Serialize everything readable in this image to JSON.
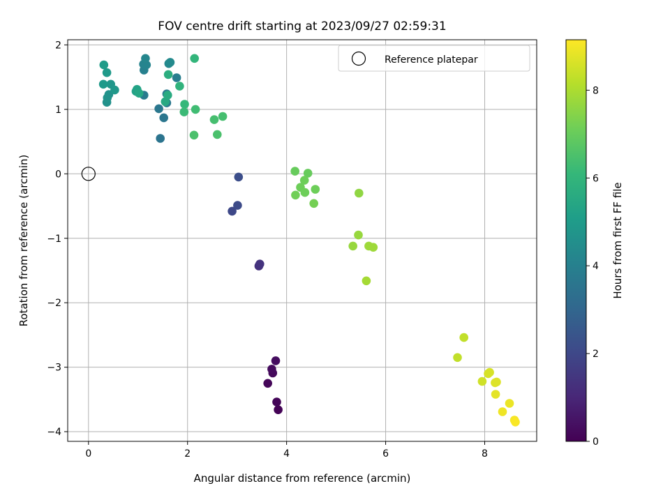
{
  "chart_data": {
    "type": "scatter",
    "title": "FOV centre drift starting at 2023/09/27 02:59:31",
    "xlabel": "Angular distance from reference (arcmin)",
    "ylabel": "Rotation from reference (arcmin)",
    "xlim": [
      -0.42,
      9.05
    ],
    "ylim": [
      -4.15,
      2.08
    ],
    "xticks": [
      0,
      2,
      4,
      6,
      8
    ],
    "xtick_labels": [
      "0",
      "2",
      "4",
      "6",
      "8"
    ],
    "yticks": [
      -4,
      -3,
      -2,
      -1,
      0,
      1,
      2
    ],
    "ytick_labels": [
      "−4",
      "−3",
      "−2",
      "−1",
      "0",
      "1",
      "2"
    ],
    "grid": true,
    "legend": {
      "position": "top-right",
      "entries": [
        "Reference platepar"
      ]
    },
    "reference_point": {
      "name": "Reference platepar",
      "x": 0,
      "y": 0
    },
    "colorbar": {
      "label": "Hours from first FF file",
      "colormap": "viridis",
      "range": [
        0,
        9.15
      ],
      "ticks": [
        0,
        2,
        4,
        6,
        8
      ],
      "tick_labels": [
        "0",
        "2",
        "4",
        "6",
        "8"
      ]
    },
    "colormap_stops": [
      "#440154",
      "#482878",
      "#3e4989",
      "#31688e",
      "#26828e",
      "#1f9e89",
      "#35b779",
      "#6ece58",
      "#b5de2b",
      "#fde725"
    ],
    "points": [
      {
        "x": 3.83,
        "y": -3.66,
        "c": 0.05
      },
      {
        "x": 3.8,
        "y": -3.54,
        "c": 0.1
      },
      {
        "x": 3.62,
        "y": -3.25,
        "c": 0.15
      },
      {
        "x": 3.72,
        "y": -3.09,
        "c": 0.2
      },
      {
        "x": 3.7,
        "y": -3.03,
        "c": 0.25
      },
      {
        "x": 3.78,
        "y": -2.9,
        "c": 0.3
      },
      {
        "x": 3.44,
        "y": -1.43,
        "c": 1.3
      },
      {
        "x": 3.46,
        "y": -1.4,
        "c": 1.35
      },
      {
        "x": 2.9,
        "y": -0.58,
        "c": 2.0
      },
      {
        "x": 3.01,
        "y": -0.49,
        "c": 2.1
      },
      {
        "x": 3.03,
        "y": -0.05,
        "c": 2.2
      },
      {
        "x": 1.45,
        "y": 0.55,
        "c": 3.5
      },
      {
        "x": 1.52,
        "y": 0.87,
        "c": 3.6
      },
      {
        "x": 1.42,
        "y": 1.01,
        "c": 3.65
      },
      {
        "x": 1.58,
        "y": 1.1,
        "c": 3.7
      },
      {
        "x": 1.58,
        "y": 1.24,
        "c": 3.75
      },
      {
        "x": 1.12,
        "y": 1.22,
        "c": 3.8
      },
      {
        "x": 1.78,
        "y": 1.49,
        "c": 3.9
      },
      {
        "x": 1.12,
        "y": 1.61,
        "c": 4.0
      },
      {
        "x": 1.11,
        "y": 1.7,
        "c": 4.1
      },
      {
        "x": 1.17,
        "y": 1.69,
        "c": 4.15
      },
      {
        "x": 1.15,
        "y": 1.79,
        "c": 4.2
      },
      {
        "x": 1.62,
        "y": 1.71,
        "c": 4.3
      },
      {
        "x": 1.65,
        "y": 1.73,
        "c": 4.35
      },
      {
        "x": 0.37,
        "y": 1.11,
        "c": 4.6
      },
      {
        "x": 0.41,
        "y": 1.23,
        "c": 4.65
      },
      {
        "x": 0.38,
        "y": 1.18,
        "c": 4.7
      },
      {
        "x": 0.45,
        "y": 1.39,
        "c": 4.8
      },
      {
        "x": 0.53,
        "y": 1.3,
        "c": 4.85
      },
      {
        "x": 0.3,
        "y": 1.39,
        "c": 4.9
      },
      {
        "x": 0.37,
        "y": 1.57,
        "c": 4.95
      },
      {
        "x": 0.31,
        "y": 1.69,
        "c": 5.0
      },
      {
        "x": 0.96,
        "y": 1.28,
        "c": 5.2
      },
      {
        "x": 0.98,
        "y": 1.31,
        "c": 5.3
      },
      {
        "x": 1.02,
        "y": 1.25,
        "c": 5.4
      },
      {
        "x": 1.55,
        "y": 1.12,
        "c": 5.5
      },
      {
        "x": 1.6,
        "y": 1.22,
        "c": 5.6
      },
      {
        "x": 1.61,
        "y": 1.54,
        "c": 5.7
      },
      {
        "x": 1.84,
        "y": 1.36,
        "c": 5.9
      },
      {
        "x": 2.14,
        "y": 1.79,
        "c": 6.0
      },
      {
        "x": 1.94,
        "y": 1.08,
        "c": 6.1
      },
      {
        "x": 1.93,
        "y": 0.96,
        "c": 6.2
      },
      {
        "x": 2.16,
        "y": 1.0,
        "c": 6.3
      },
      {
        "x": 2.71,
        "y": 0.89,
        "c": 6.4
      },
      {
        "x": 2.54,
        "y": 0.84,
        "c": 6.4
      },
      {
        "x": 2.13,
        "y": 0.6,
        "c": 6.5
      },
      {
        "x": 2.6,
        "y": 0.61,
        "c": 6.5
      },
      {
        "x": 4.17,
        "y": 0.04,
        "c": 7.0
      },
      {
        "x": 4.43,
        "y": 0.01,
        "c": 7.0
      },
      {
        "x": 4.36,
        "y": -0.1,
        "c": 7.1
      },
      {
        "x": 4.28,
        "y": -0.21,
        "c": 7.1
      },
      {
        "x": 4.58,
        "y": -0.24,
        "c": 7.1
      },
      {
        "x": 4.37,
        "y": -0.29,
        "c": 7.1
      },
      {
        "x": 4.18,
        "y": -0.33,
        "c": 7.15
      },
      {
        "x": 4.55,
        "y": -0.46,
        "c": 7.2
      },
      {
        "x": 5.46,
        "y": -0.3,
        "c": 7.6
      },
      {
        "x": 5.45,
        "y": -0.95,
        "c": 7.7
      },
      {
        "x": 5.34,
        "y": -1.12,
        "c": 7.7
      },
      {
        "x": 5.66,
        "y": -1.12,
        "c": 7.8
      },
      {
        "x": 5.75,
        "y": -1.14,
        "c": 7.8
      },
      {
        "x": 5.61,
        "y": -1.66,
        "c": 7.9
      },
      {
        "x": 7.58,
        "y": -2.54,
        "c": 8.3
      },
      {
        "x": 7.45,
        "y": -2.85,
        "c": 8.3
      },
      {
        "x": 8.1,
        "y": -3.08,
        "c": 8.6
      },
      {
        "x": 8.07,
        "y": -3.1,
        "c": 8.6
      },
      {
        "x": 7.95,
        "y": -3.22,
        "c": 8.5
      },
      {
        "x": 8.24,
        "y": -3.23,
        "c": 8.7
      },
      {
        "x": 8.21,
        "y": -3.24,
        "c": 8.7
      },
      {
        "x": 8.22,
        "y": -3.42,
        "c": 8.8
      },
      {
        "x": 8.5,
        "y": -3.56,
        "c": 8.9
      },
      {
        "x": 8.36,
        "y": -3.69,
        "c": 8.95
      },
      {
        "x": 8.6,
        "y": -3.82,
        "c": 9.05
      },
      {
        "x": 8.62,
        "y": -3.85,
        "c": 9.1
      }
    ]
  }
}
